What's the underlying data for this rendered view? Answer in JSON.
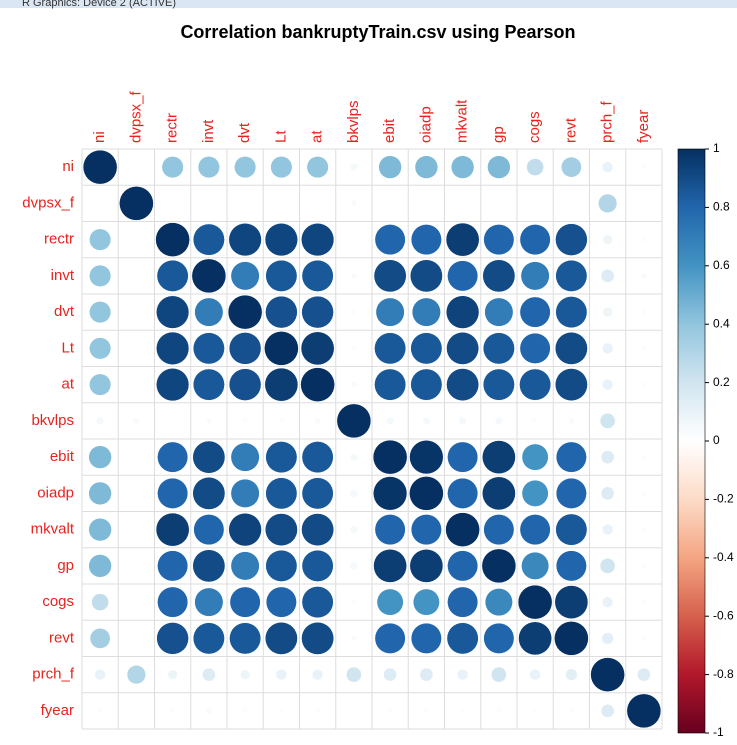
{
  "window_title": "R Graphics: Device 2 (ACTIVE)",
  "chart_data": {
    "type": "corrplot",
    "title": "Correlation bankruptyTrain.csv using Pearson",
    "variables": [
      "ni",
      "dvpsx_f",
      "rectr",
      "invt",
      "dvt",
      "Lt",
      "at",
      "bkvlps",
      "ebit",
      "oiadp",
      "mkvalt",
      "gp",
      "cogs",
      "revt",
      "prch_f",
      "fyear"
    ],
    "matrix": [
      [
        1,
        0,
        0.4,
        0.4,
        0.4,
        0.4,
        0.4,
        0.05,
        0.45,
        0.45,
        0.45,
        0.45,
        0.25,
        0.35,
        0.1,
        0.02
      ],
      [
        0,
        1,
        0.01,
        0.01,
        0.01,
        0.01,
        0.01,
        0.03,
        0.01,
        0.01,
        0.01,
        0.01,
        0.01,
        0.01,
        0.3,
        0.01
      ],
      [
        0.4,
        0.01,
        1,
        0.85,
        0.92,
        0.92,
        0.92,
        0.01,
        0.8,
        0.8,
        0.95,
        0.8,
        0.8,
        0.88,
        0.08,
        0.02
      ],
      [
        0.4,
        0.01,
        0.85,
        1,
        0.7,
        0.85,
        0.85,
        0.03,
        0.9,
        0.9,
        0.8,
        0.9,
        0.7,
        0.85,
        0.15,
        0.03
      ],
      [
        0.4,
        0.01,
        0.92,
        0.7,
        1,
        0.88,
        0.88,
        0.02,
        0.7,
        0.7,
        0.93,
        0.7,
        0.8,
        0.85,
        0.08,
        0.02
      ],
      [
        0.4,
        0.01,
        0.92,
        0.85,
        0.88,
        1,
        0.95,
        0.02,
        0.85,
        0.85,
        0.9,
        0.85,
        0.8,
        0.9,
        0.1,
        0.02
      ],
      [
        0.4,
        0.01,
        0.92,
        0.85,
        0.88,
        0.95,
        1,
        0.03,
        0.85,
        0.85,
        0.9,
        0.85,
        0.85,
        0.9,
        0.1,
        0.02
      ],
      [
        0.05,
        0.03,
        0.01,
        0.03,
        0.02,
        0.02,
        0.03,
        1,
        0.05,
        0.05,
        0.05,
        0.05,
        0.02,
        0.03,
        0.2,
        0.01
      ],
      [
        0.45,
        0.01,
        0.8,
        0.9,
        0.7,
        0.85,
        0.85,
        0.05,
        1,
        0.98,
        0.8,
        0.95,
        0.6,
        0.8,
        0.15,
        0.02
      ],
      [
        0.45,
        0.01,
        0.8,
        0.9,
        0.7,
        0.85,
        0.85,
        0.05,
        0.98,
        1,
        0.8,
        0.95,
        0.6,
        0.8,
        0.15,
        0.02
      ],
      [
        0.45,
        0.01,
        0.95,
        0.8,
        0.93,
        0.9,
        0.9,
        0.05,
        0.8,
        0.8,
        1,
        0.8,
        0.8,
        0.85,
        0.1,
        0.02
      ],
      [
        0.45,
        0.01,
        0.8,
        0.9,
        0.7,
        0.85,
        0.85,
        0.05,
        0.95,
        0.95,
        0.8,
        1,
        0.65,
        0.8,
        0.2,
        0.02
      ],
      [
        0.25,
        0.01,
        0.8,
        0.7,
        0.8,
        0.8,
        0.85,
        0.02,
        0.6,
        0.6,
        0.8,
        0.65,
        1,
        0.95,
        0.1,
        0.02
      ],
      [
        0.35,
        0.01,
        0.88,
        0.85,
        0.85,
        0.9,
        0.9,
        0.03,
        0.8,
        0.8,
        0.85,
        0.8,
        0.95,
        1,
        0.12,
        0.02
      ],
      [
        0.1,
        0.3,
        0.08,
        0.15,
        0.08,
        0.1,
        0.1,
        0.2,
        0.15,
        0.15,
        0.1,
        0.2,
        0.1,
        0.12,
        1,
        0.15
      ],
      [
        0.02,
        0.01,
        0.02,
        0.03,
        0.02,
        0.02,
        0.02,
        0.01,
        0.02,
        0.02,
        0.02,
        0.02,
        0.02,
        0.02,
        0.15,
        1
      ]
    ],
    "colorscale": [
      "#67001F",
      "#B2182B",
      "#D6604D",
      "#F4A582",
      "#FDDBC7",
      "#FFFFFF",
      "#D1E5F0",
      "#92C5DE",
      "#4393C3",
      "#2166AC",
      "#053061"
    ],
    "clim": [
      -1,
      1
    ],
    "cticks": [
      -1,
      -0.8,
      -0.6,
      -0.4,
      -0.2,
      0,
      0.2,
      0.4,
      0.6,
      0.8,
      1
    ]
  }
}
